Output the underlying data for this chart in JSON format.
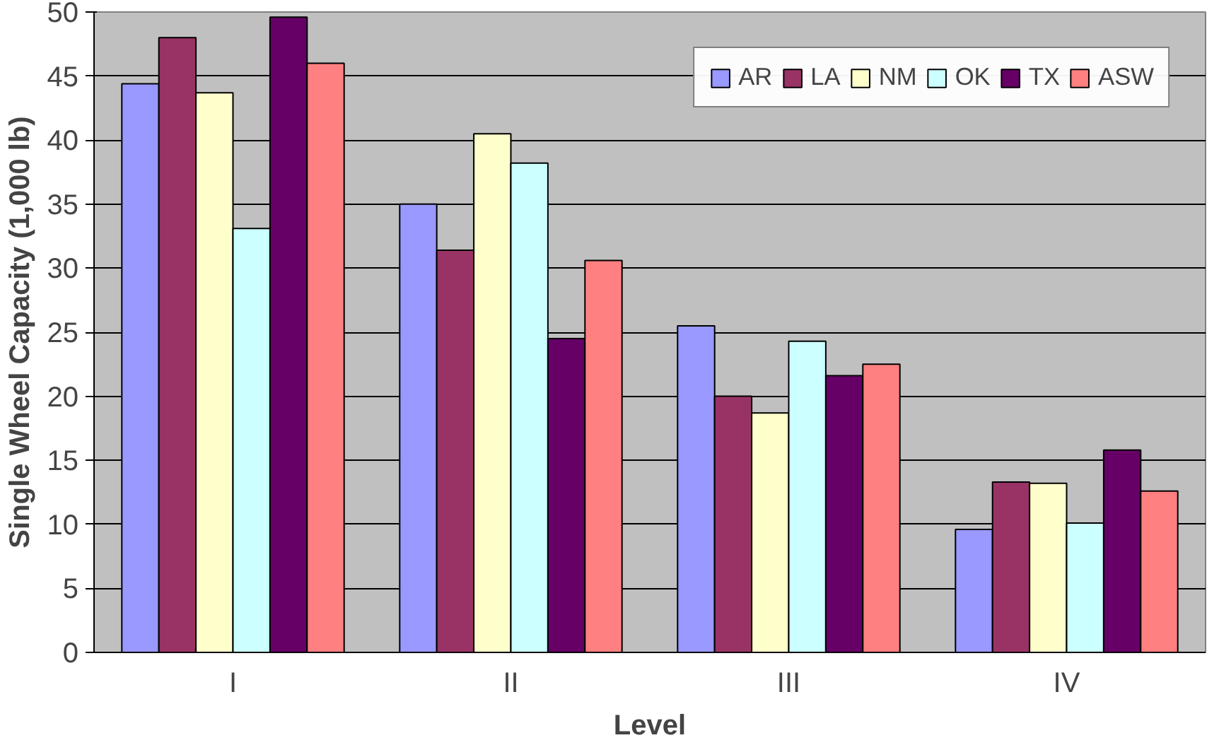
{
  "chart_data": {
    "type": "bar",
    "xlabel": "Level",
    "ylabel": "Single Wheel Capacity (1,000 lb)",
    "categories": [
      "I",
      "II",
      "III",
      "IV"
    ],
    "series": [
      {
        "name": "AR",
        "color": "#9999ff",
        "values": [
          44.4,
          35.0,
          25.5,
          9.6
        ]
      },
      {
        "name": "LA",
        "color": "#993366",
        "values": [
          48.0,
          31.4,
          20.0,
          13.3
        ]
      },
      {
        "name": "NM",
        "color": "#ffffcc",
        "values": [
          43.7,
          40.5,
          18.7,
          13.2
        ]
      },
      {
        "name": "OK",
        "color": "#ccffff",
        "values": [
          33.1,
          38.2,
          24.3,
          10.1
        ]
      },
      {
        "name": "TX",
        "color": "#660066",
        "values": [
          49.6,
          24.5,
          21.6,
          15.8
        ]
      },
      {
        "name": "ASW",
        "color": "#ff8080",
        "values": [
          46.0,
          30.6,
          22.5,
          12.6
        ]
      }
    ],
    "ylim": [
      0,
      50
    ],
    "yticks": [
      0,
      5,
      10,
      15,
      20,
      25,
      30,
      35,
      40,
      45,
      50
    ],
    "grid": "y",
    "legend": "top right"
  }
}
